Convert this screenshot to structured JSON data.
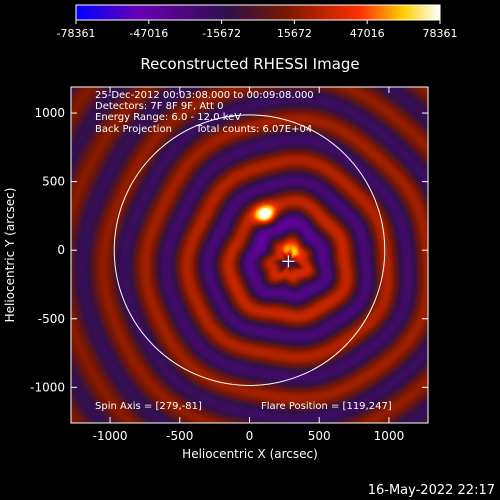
{
  "chart_data": {
    "type": "heatmap",
    "title": "Reconstructed RHESSI Image",
    "xlabel": "Heliocentric X (arcsec)",
    "ylabel": "Heliocentric Y (arcsec)",
    "xlim": [
      -1280,
      1280
    ],
    "ylim": [
      -1260,
      1190
    ],
    "xticks": [
      -1000,
      -500,
      0,
      500,
      1000
    ],
    "yticks": [
      -1000,
      -500,
      0,
      500,
      1000
    ],
    "xtick_labels": [
      "-1000",
      "-500",
      "0",
      "500",
      "1000"
    ],
    "ytick_labels": [
      "-1000",
      "-500",
      "0",
      "500",
      "1000"
    ],
    "colorbar": {
      "range": [
        -78361,
        78361
      ],
      "tick_values": [
        -78361,
        -47016,
        -15672,
        15672,
        47016,
        78361
      ],
      "tick_labels": [
        "-78361",
        "-47016",
        "-15672",
        "15672",
        "47016",
        "78361"
      ],
      "colors": [
        "#0000ff",
        "#6a00b0",
        "#30104a",
        "#7a1800",
        "#ff3000",
        "#ffd000",
        "#ffffff"
      ]
    },
    "annotations": {
      "time_range": "25-Dec-2012 00:03:08.000 to 00:09:08.000",
      "detectors": "Detectors: 7F 8F 9F, Att 0",
      "energy_range": "Energy Range: 6.0 - 12.0 keV",
      "method": "Back Projection",
      "total_counts": "Total counts: 6.07E+04",
      "spin_axis": "Spin Axis = [279,-81]",
      "flare_position": "Flare Position = [119,247]",
      "timestamp": "16-May-2022 22:17"
    },
    "solar_disk": {
      "center": [
        0,
        0
      ],
      "radius": 970
    },
    "sources": [
      {
        "name": "primary",
        "x": 119,
        "y": 247,
        "value": 78361
      },
      {
        "name": "secondary",
        "x": 290,
        "y": -10,
        "value": 55000
      }
    ],
    "marker": {
      "x": 279,
      "y": -81
    },
    "ring_center": [
      279,
      -81
    ],
    "ring_period_arcsec": 300
  }
}
